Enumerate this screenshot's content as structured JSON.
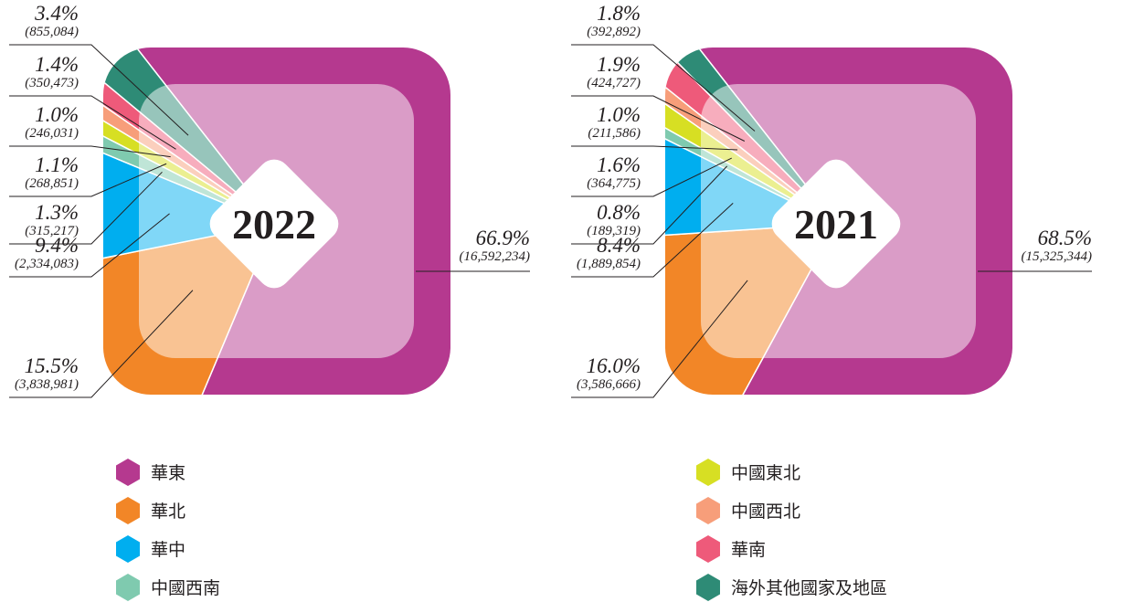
{
  "chart_data": [
    {
      "type": "pie",
      "title": "2022",
      "categories": [
        "華東",
        "華北",
        "華中",
        "中國西南",
        "中國東北",
        "中國西北",
        "華南",
        "海外其他國家及地區"
      ],
      "values": [
        66.9,
        15.5,
        9.4,
        1.3,
        1.1,
        1.0,
        1.4,
        3.4
      ],
      "value_labels": [
        "66.9%",
        "15.5%",
        "9.4%",
        "1.3%",
        "1.1%",
        "1.0%",
        "1.4%",
        "3.4%"
      ],
      "counts": [
        16592234,
        3838981,
        2334083,
        315217,
        268851,
        246031,
        350473,
        855084
      ],
      "count_labels": [
        "(16,592,234)",
        "(3,838,981)",
        "(2,334,083)",
        "(315,217)",
        "(268,851)",
        "(246,031)",
        "(350,473)",
        "(855,084)"
      ],
      "colors": [
        "#b5398f",
        "#f28627",
        "#00aeef",
        "#7fcaaf",
        "#d7df23",
        "#f79e7a",
        "#ee5a7a",
        "#2e8b76"
      ]
    },
    {
      "type": "pie",
      "title": "2021",
      "categories": [
        "華東",
        "華北",
        "華中",
        "中國西南",
        "中國東北",
        "中國西北",
        "華南",
        "海外其他國家及地區"
      ],
      "values": [
        68.5,
        16.0,
        8.4,
        0.8,
        1.6,
        1.0,
        1.9,
        1.8
      ],
      "value_labels": [
        "68.5%",
        "16.0%",
        "8.4%",
        "0.8%",
        "1.6%",
        "1.0%",
        "1.9%",
        "1.8%"
      ],
      "counts": [
        15325344,
        3586666,
        1889854,
        189319,
        364775,
        211586,
        424727,
        392892
      ],
      "count_labels": [
        "(15,325,344)",
        "(3,586,666)",
        "(1,889,854)",
        "(189,319)",
        "(364,775)",
        "(211,586)",
        "(424,727)",
        "(392,892)"
      ],
      "colors": [
        "#b5398f",
        "#f28627",
        "#00aeef",
        "#7fcaaf",
        "#d7df23",
        "#f79e7a",
        "#ee5a7a",
        "#2e8b76"
      ]
    }
  ]
}
